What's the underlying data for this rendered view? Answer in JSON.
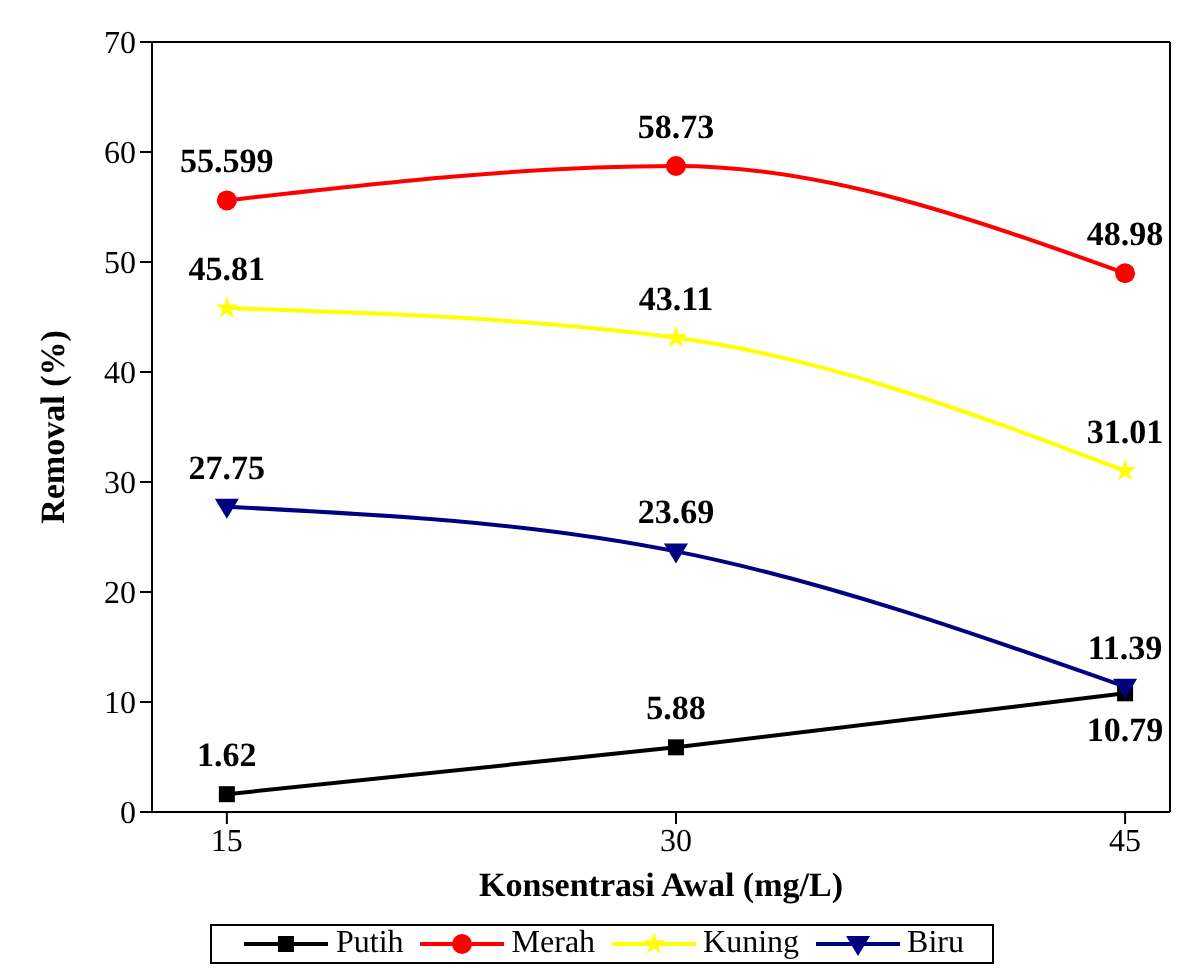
{
  "chart_data": {
    "type": "line",
    "xlabel": "Konsentrasi Awal (mg/L)",
    "ylabel": "Removal (%)",
    "x": [
      15,
      30,
      45
    ],
    "xlim": [
      12.5,
      46.5
    ],
    "xticks": [
      15,
      30,
      45
    ],
    "ylim": [
      0,
      70
    ],
    "yticks": [
      0,
      10,
      20,
      30,
      40,
      50,
      60,
      70
    ],
    "series": [
      {
        "name": "Putih",
        "color": "#000000",
        "marker": "square",
        "values": [
          1.62,
          5.88,
          10.79
        ]
      },
      {
        "name": "Merah",
        "color": "#ff0000",
        "marker": "circle",
        "values": [
          55.599,
          58.73,
          48.98
        ]
      },
      {
        "name": "Kuning",
        "color": "#ffff00",
        "marker": "star",
        "values": [
          45.81,
          43.11,
          31.01
        ]
      },
      {
        "name": "Biru",
        "color": "#000080",
        "marker": "triangle",
        "values": [
          27.75,
          23.69,
          11.39
        ]
      }
    ],
    "data_labels": true,
    "legend": "bottom",
    "grid": false
  }
}
